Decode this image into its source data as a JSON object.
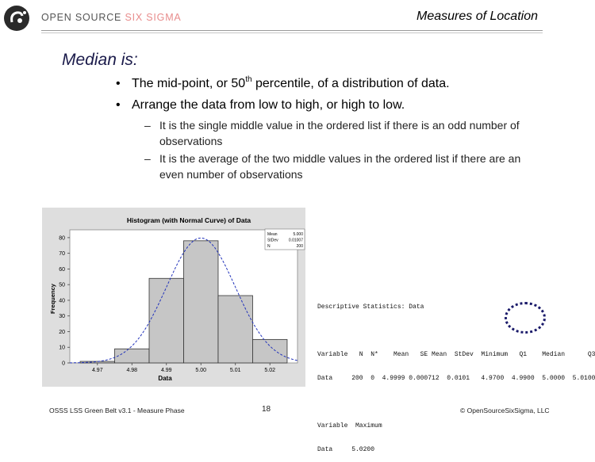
{
  "header": {
    "brand_prefix": "OPEN SOURCE ",
    "brand_highlight": "SIX SIGMA",
    "title": "Measures of Location"
  },
  "main": {
    "heading": "Median is:",
    "bullets": [
      {
        "pre": "The mid-point, or 50",
        "sup": "th",
        "post": " percentile, of a distribution of data."
      },
      {
        "pre": "Arrange the data from low to high, or high to low.",
        "sup": "",
        "post": ""
      }
    ],
    "sub_bullets": [
      "It is the single middle value in the ordered list if there is an odd number of observations",
      "It is the average of the two middle values in the ordered list if there are an even number of observations"
    ]
  },
  "chart_data": {
    "type": "bar",
    "title": "Histogram (with Normal Curve) of Data",
    "xlabel": "Data",
    "ylabel": "Frequency",
    "categories": [
      "4.97",
      "4.98",
      "4.99",
      "5.00",
      "5.01",
      "5.02"
    ],
    "bin_centers": [
      4.97,
      4.98,
      4.99,
      5.0,
      5.01,
      5.02
    ],
    "values": [
      1,
      9,
      54,
      78,
      43,
      15
    ],
    "ylim": [
      0,
      85
    ],
    "yticks": [
      0,
      10,
      20,
      30,
      40,
      50,
      60,
      70,
      80
    ],
    "xlim": [
      4.962,
      5.028
    ],
    "normal_curve": {
      "mean": 5.0,
      "stdev": 0.01
    }
  },
  "legend_box": {
    "rows": [
      {
        "label": "Mean",
        "value": "5.000"
      },
      {
        "label": "StDev",
        "value": "0.01007"
      },
      {
        "label": "N",
        "value": "200"
      }
    ]
  },
  "stats": {
    "title": "Descriptive Statistics: Data",
    "row1_header": "Variable   N  N*    Mean   SE Mean  StDev  Minimum   Q1    Median      Q3",
    "row1_values": "Data     200  0  4.9999 0.000712  0.0101   4.9700  4.9900  5.0000  5.0100",
    "row2_header": "Variable  Maximum",
    "row2_values": "Data     5.0200"
  },
  "footer": {
    "left": "OSSS LSS Green Belt v3.1 - Measure Phase",
    "page": "18",
    "right": "© OpenSourceSixSigma, LLC"
  }
}
